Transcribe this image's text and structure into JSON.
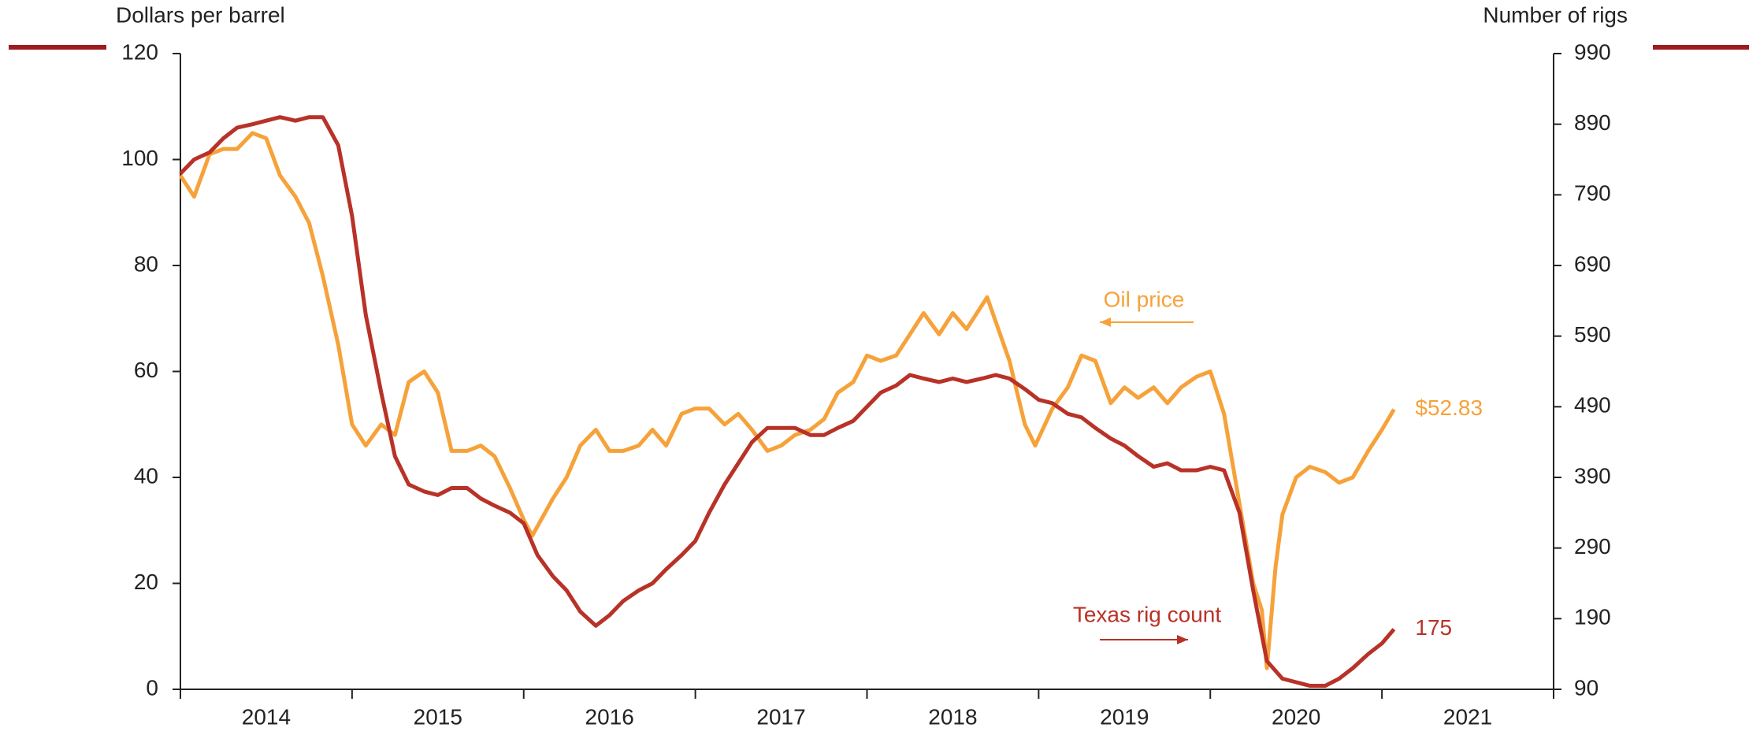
{
  "chart_data": {
    "type": "line",
    "y_label": "Dollars per barrel",
    "y2_label": "Number of rigs",
    "xlim": [
      2014,
      2022
    ],
    "xticks": [
      {
        "value": 2014.5,
        "label": "2014"
      },
      {
        "value": 2015.5,
        "label": "2015"
      },
      {
        "value": 2016.5,
        "label": "2016"
      },
      {
        "value": 2017.5,
        "label": "2017"
      },
      {
        "value": 2018.5,
        "label": "2018"
      },
      {
        "value": 2019.5,
        "label": "2019"
      },
      {
        "value": 2020.5,
        "label": "2020"
      },
      {
        "value": 2021.5,
        "label": "2021"
      }
    ],
    "ylim": [
      0,
      120
    ],
    "yticks": [
      0,
      20,
      40,
      60,
      80,
      100,
      120
    ],
    "y2lim": [
      90,
      990
    ],
    "y2ticks": [
      90,
      190,
      290,
      390,
      490,
      590,
      690,
      790,
      890,
      990
    ],
    "series": [
      {
        "name": "Oil price",
        "color": "#f6a23a",
        "end_label": "$52.83",
        "x": [
          2014.0,
          2014.08,
          2014.17,
          2014.25,
          2014.33,
          2014.42,
          2014.5,
          2014.58,
          2014.67,
          2014.75,
          2014.83,
          2014.92,
          2015.0,
          2015.08,
          2015.17,
          2015.25,
          2015.33,
          2015.42,
          2015.5,
          2015.58,
          2015.67,
          2015.75,
          2015.83,
          2015.92,
          2016.0,
          2016.05,
          2016.17,
          2016.25,
          2016.33,
          2016.42,
          2016.5,
          2016.58,
          2016.67,
          2016.75,
          2016.83,
          2016.92,
          2017.0,
          2017.08,
          2017.17,
          2017.25,
          2017.33,
          2017.42,
          2017.5,
          2017.58,
          2017.67,
          2017.75,
          2017.83,
          2017.92,
          2018.0,
          2018.08,
          2018.17,
          2018.25,
          2018.33,
          2018.42,
          2018.5,
          2018.58,
          2018.7,
          2018.83,
          2018.92,
          2018.98,
          2019.08,
          2019.17,
          2019.25,
          2019.33,
          2019.42,
          2019.5,
          2019.58,
          2019.67,
          2019.75,
          2019.83,
          2019.92,
          2020.0,
          2020.08,
          2020.17,
          2020.25,
          2020.3,
          2020.33,
          2020.38,
          2020.42,
          2020.5,
          2020.58,
          2020.67,
          2020.75,
          2020.83,
          2020.92,
          2021.0,
          2021.07
        ],
        "values": [
          97,
          93,
          101,
          102,
          102,
          105,
          104,
          97,
          93,
          88,
          78,
          65,
          50,
          46,
          50,
          48,
          58,
          60,
          56,
          45,
          45,
          46,
          44,
          38,
          32,
          29,
          36,
          40,
          46,
          49,
          45,
          45,
          46,
          49,
          46,
          52,
          53,
          53,
          50,
          52,
          49,
          45,
          46,
          48,
          49,
          51,
          56,
          58,
          63,
          62,
          63,
          67,
          71,
          67,
          71,
          68,
          74,
          62,
          50,
          46,
          53,
          57,
          63,
          62,
          54,
          57,
          55,
          57,
          54,
          57,
          59,
          60,
          52,
          35,
          20,
          15,
          4,
          23,
          33,
          40,
          42,
          41,
          39,
          40,
          45,
          49,
          52.83
        ]
      },
      {
        "name": "Texas rig count",
        "color": "#b83227",
        "axis": "y2",
        "x": [
          2014.0,
          2014.08,
          2014.17,
          2014.25,
          2014.33,
          2014.42,
          2014.5,
          2014.58,
          2014.67,
          2014.75,
          2014.83,
          2014.92,
          2015.0,
          2015.08,
          2015.17,
          2015.25,
          2015.33,
          2015.42,
          2015.5,
          2015.58,
          2015.67,
          2015.75,
          2015.83,
          2015.92,
          2016.0,
          2016.08,
          2016.17,
          2016.25,
          2016.33,
          2016.42,
          2016.5,
          2016.58,
          2016.67,
          2016.75,
          2016.83,
          2016.92,
          2017.0,
          2017.08,
          2017.17,
          2017.25,
          2017.33,
          2017.42,
          2017.5,
          2017.58,
          2017.67,
          2017.75,
          2017.83,
          2017.92,
          2018.0,
          2018.08,
          2018.17,
          2018.25,
          2018.33,
          2018.42,
          2018.5,
          2018.58,
          2018.67,
          2018.75,
          2018.83,
          2018.92,
          2019.0,
          2019.08,
          2019.17,
          2019.25,
          2019.33,
          2019.42,
          2019.5,
          2019.58,
          2019.67,
          2019.75,
          2019.83,
          2019.92,
          2020.0,
          2020.08,
          2020.17,
          2020.25,
          2020.33,
          2020.42,
          2020.5,
          2020.58,
          2020.67,
          2020.75,
          2020.83,
          2020.92,
          2021.0,
          2021.07
        ],
        "values": [
          820,
          840,
          850,
          870,
          885,
          890,
          895,
          900,
          895,
          900,
          900,
          860,
          760,
          620,
          510,
          420,
          380,
          370,
          365,
          375,
          375,
          360,
          350,
          340,
          325,
          280,
          250,
          230,
          200,
          180,
          195,
          215,
          230,
          240,
          260,
          280,
          300,
          340,
          380,
          410,
          440,
          460,
          460,
          460,
          450,
          450,
          460,
          470,
          490,
          510,
          520,
          535,
          530,
          525,
          530,
          525,
          530,
          535,
          530,
          515,
          500,
          495,
          480,
          475,
          460,
          445,
          435,
          420,
          405,
          410,
          400,
          400,
          405,
          400,
          340,
          230,
          130,
          105,
          100,
          95,
          95,
          105,
          120,
          140,
          155,
          175
        ]
      }
    ]
  }
}
